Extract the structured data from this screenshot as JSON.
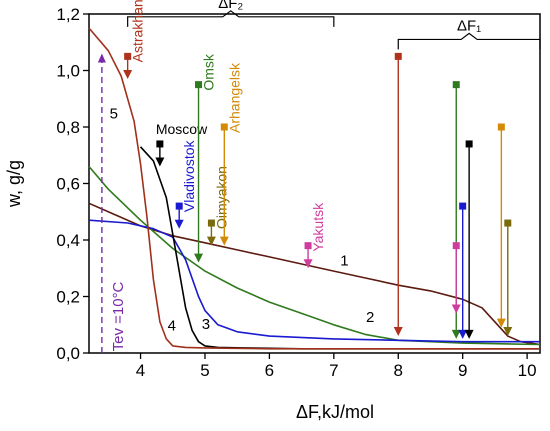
{
  "chart_data": {
    "type": "line",
    "title": "",
    "xlabel": "ΔF,kJ/mol",
    "ylabel": "w, g/g",
    "xlim": [
      3.2,
      10.2
    ],
    "ylim": [
      0.0,
      1.2
    ],
    "x_ticks": [
      4,
      5,
      6,
      7,
      8,
      9,
      10
    ],
    "x_tick_labels": [
      "4",
      "5",
      "6",
      "7",
      "8",
      "9",
      "10"
    ],
    "y_ticks": [
      0.0,
      0.2,
      0.4,
      0.6,
      0.8,
      1.0,
      1.2
    ],
    "y_tick_labels": [
      "0,0",
      "0,2",
      "0,4",
      "0,6",
      "0,8",
      "1,0",
      "1,2"
    ],
    "grid": false,
    "series": [
      {
        "name": "1",
        "color": "#5c1a10",
        "x": [
          3.2,
          3.6,
          4.0,
          4.5,
          5.0,
          5.5,
          6.0,
          6.5,
          7.0,
          7.5,
          8.0,
          8.5,
          9.0,
          9.3,
          9.5,
          9.7,
          9.9,
          10.2
        ],
        "y": [
          0.53,
          0.49,
          0.45,
          0.415,
          0.39,
          0.365,
          0.34,
          0.315,
          0.29,
          0.265,
          0.24,
          0.22,
          0.19,
          0.16,
          0.11,
          0.06,
          0.04,
          0.03
        ]
      },
      {
        "name": "2",
        "color": "#2f7a1e",
        "x": [
          3.2,
          3.5,
          4.0,
          4.5,
          5.0,
          5.5,
          6.0,
          6.5,
          7.0,
          7.5,
          8.0,
          9.0,
          10.2
        ],
        "y": [
          0.66,
          0.58,
          0.47,
          0.37,
          0.29,
          0.23,
          0.18,
          0.14,
          0.1,
          0.065,
          0.045,
          0.035,
          0.03
        ]
      },
      {
        "name": "3",
        "color": "#1a1ad0",
        "x": [
          3.2,
          3.8,
          4.2,
          4.5,
          4.7,
          4.9,
          5.0,
          5.2,
          5.5,
          6.0,
          7.0,
          8.0,
          9.0,
          10.2
        ],
        "y": [
          0.47,
          0.46,
          0.44,
          0.41,
          0.33,
          0.2,
          0.15,
          0.1,
          0.075,
          0.06,
          0.05,
          0.045,
          0.04,
          0.04
        ]
      },
      {
        "name": "4",
        "color": "#000000",
        "x": [
          4.0,
          4.2,
          4.4,
          4.5,
          4.6,
          4.7,
          4.8,
          4.9,
          5.0,
          5.2,
          5.6,
          6.5,
          8.0,
          10.2
        ],
        "y": [
          0.73,
          0.68,
          0.55,
          0.42,
          0.29,
          0.16,
          0.08,
          0.04,
          0.025,
          0.02,
          0.018,
          0.015,
          0.015,
          0.015
        ]
      },
      {
        "name": "5",
        "color": "#a0301c",
        "x": [
          3.2,
          3.5,
          3.7,
          3.9,
          4.0,
          4.1,
          4.2,
          4.3,
          4.4,
          4.5,
          4.7,
          5.0,
          6.0,
          10.2
        ],
        "y": [
          1.15,
          1.07,
          0.98,
          0.82,
          0.67,
          0.48,
          0.26,
          0.11,
          0.05,
          0.025,
          0.02,
          0.018,
          0.015,
          0.015
        ]
      }
    ],
    "arrows": [
      {
        "label": "Astrakhan",
        "x": 3.8,
        "y_start": 1.05,
        "y_end": 0.97,
        "color": "#b0321c",
        "dashed": false
      },
      {
        "label": "Moscow",
        "x": 4.3,
        "y_start": 0.74,
        "y_end": 0.66,
        "color": "#000000",
        "dashed": false
      },
      {
        "label": "Vladivostok",
        "x": 4.6,
        "y_start": 0.52,
        "y_end": 0.44,
        "color": "#1a1ad0",
        "dashed": false
      },
      {
        "label": "Omsk",
        "x": 4.9,
        "y_start": 0.95,
        "y_end": 0.32,
        "color": "#2f7a1e",
        "dashed": false
      },
      {
        "label": "Oimyakon",
        "x": 5.1,
        "y_start": 0.46,
        "y_end": 0.38,
        "color": "#7a6a0c",
        "dashed": false
      },
      {
        "label": "Arhangelsk",
        "x": 5.3,
        "y_start": 0.8,
        "y_end": 0.38,
        "color": "#d48a06",
        "dashed": false
      },
      {
        "label": "Yakutsk",
        "x": 6.6,
        "y_start": 0.38,
        "y_end": 0.3,
        "color": "#d03c9e",
        "dashed": false
      },
      {
        "label": "",
        "x": 8.0,
        "y_start": 1.05,
        "y_end": 0.06,
        "color": "#b0321c",
        "dashed": false
      },
      {
        "label": "",
        "x": 8.9,
        "y_start": 0.95,
        "y_end": 0.05,
        "color": "#2f7a1e",
        "dashed": false
      },
      {
        "label": "",
        "x": 8.9,
        "y_start": 0.38,
        "y_end": 0.14,
        "color": "#d03c9e",
        "dashed": false
      },
      {
        "label": "",
        "x": 9.0,
        "y_start": 0.52,
        "y_end": 0.05,
        "color": "#1a1ad0",
        "dashed": false
      },
      {
        "label": "",
        "x": 9.1,
        "y_start": 0.74,
        "y_end": 0.05,
        "color": "#000000",
        "dashed": false
      },
      {
        "label": "",
        "x": 9.6,
        "y_start": 0.8,
        "y_end": 0.09,
        "color": "#d48a06",
        "dashed": false
      },
      {
        "label": "",
        "x": 9.7,
        "y_start": 0.46,
        "y_end": 0.06,
        "color": "#7a6a0c",
        "dashed": false
      },
      {
        "label": "Tev =10°C",
        "x": 3.4,
        "y_start": 0.0,
        "y_end": 1.06,
        "color": "#7a2aa8",
        "dashed": true
      }
    ],
    "brackets": [
      {
        "label": "ΔF₂",
        "x_start": 3.8,
        "x_end": 7.0,
        "y": 1.19
      },
      {
        "label": "ΔF₁",
        "x_start": 8.0,
        "x_end": 10.2,
        "y": 1.11
      }
    ]
  }
}
